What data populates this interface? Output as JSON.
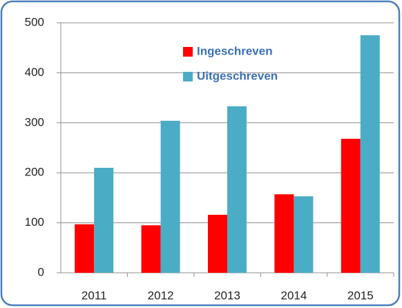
{
  "chart_data": {
    "type": "bar",
    "categories": [
      "2011",
      "2012",
      "2013",
      "2014",
      "2015"
    ],
    "series": [
      {
        "name": "Ingeschreven",
        "color": "#ff0000",
        "values": [
          97,
          95,
          116,
          157,
          268
        ]
      },
      {
        "name": "Uitgeschreven",
        "color": "#4bacc6",
        "values": [
          210,
          304,
          333,
          153,
          475
        ]
      }
    ],
    "ylim": [
      0,
      500
    ],
    "yticks": [
      0,
      100,
      200,
      300,
      400,
      500
    ],
    "grid": true,
    "legend": "upper center"
  }
}
